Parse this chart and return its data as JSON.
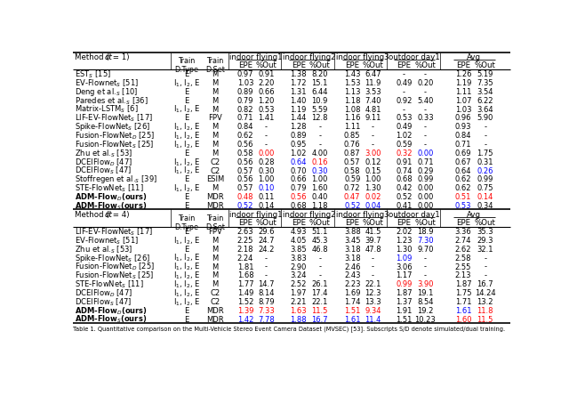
{
  "section1_rows": [
    [
      "EST$_S$ [15]",
      "E",
      "M",
      "0.97",
      "0.91",
      "1.38",
      "8.20",
      "1.43",
      "6.47",
      "-",
      "-",
      "1.26",
      "5.19"
    ],
    [
      "EV-Flownet$_S$ [51]",
      "I$_1$, I$_2$, E",
      "M",
      "1.03",
      "2.20",
      "1.72",
      "15.1",
      "1.53",
      "11.9",
      "0.49",
      "0.20",
      "1.19",
      "7.35"
    ],
    [
      "Deng et al.$_S$ [10]",
      "E",
      "M",
      "0.89",
      "0.66",
      "1.31",
      "6.44",
      "1.13",
      "3.53",
      "-",
      "-",
      "1.11",
      "3.54"
    ],
    [
      "Paredes et al.$_S$ [36]",
      "E",
      "M",
      "0.79",
      "1.20",
      "1.40",
      "10.9",
      "1.18",
      "7.40",
      "0.92",
      "5.40",
      "1.07",
      "6.22"
    ],
    [
      "Matrix-LSTM$_S$ [6]",
      "I$_1$, I$_2$, E",
      "M",
      "0.82",
      "0.53",
      "1.19",
      "5.59",
      "1.08",
      "4.81",
      "-",
      "-",
      "1.03",
      "3.64"
    ],
    [
      "LIF-EV-FlowNet$_S$ [17]",
      "E",
      "FPV",
      "0.71",
      "1.41",
      "1.44",
      "12.8",
      "1.16",
      "9.11",
      "0.53",
      "0.33",
      "0.96",
      "5.90"
    ],
    [
      "Spike-FlowNet$_S$ [26]",
      "I$_1$, I$_2$, E",
      "M",
      "0.84",
      "-",
      "1.28",
      "-",
      "1.11",
      "-",
      "0.49",
      "-",
      "0.93",
      "-"
    ],
    [
      "Fusion-FlowNet$_D$ [25]",
      "I$_1$, I$_2$, E",
      "M",
      "0.62",
      "-",
      "0.89",
      "-",
      "0.85",
      "-",
      "1.02",
      "-",
      "0.84",
      "-"
    ],
    [
      "Fusion-FlowNet$_S$ [25]",
      "I$_1$, I$_2$, E",
      "M",
      "0.56",
      "-",
      "0.95",
      "-",
      "0.76",
      "-",
      "0.59",
      "-",
      "0.71",
      "-"
    ],
    [
      "Zhu et al.$_S$ [53]",
      "E",
      "M",
      "0.58",
      "0.00",
      "1.02",
      "4.00",
      "0.87",
      "3.00",
      "0.32",
      "0.00",
      "0.69",
      "1.75"
    ],
    [
      "DCEIFlow$_D$ [47]",
      "I$_1$, I$_2$, E",
      "C2",
      "0.56",
      "0.28",
      "0.64",
      "0.16",
      "0.57",
      "0.12",
      "0.91",
      "0.71",
      "0.67",
      "0.31"
    ],
    [
      "DCEIFlow$_S$ [47]",
      "I$_1$, I$_2$, E",
      "C2",
      "0.57",
      "0.30",
      "0.70",
      "0.30",
      "0.58",
      "0.15",
      "0.74",
      "0.29",
      "0.64",
      "0.26"
    ],
    [
      "Stoffregen et al.$_S$ [39]",
      "E",
      "ESIM",
      "0.56",
      "1.00",
      "0.66",
      "1.00",
      "0.59",
      "1.00",
      "0.68",
      "0.99",
      "0.62",
      "0.99"
    ],
    [
      "STE-FlowNet$_S$ [11]",
      "I$_1$, I$_2$, E",
      "M",
      "0.57",
      "0.10",
      "0.79",
      "1.60",
      "0.72",
      "1.30",
      "0.42",
      "0.00",
      "0.62",
      "0.75"
    ],
    [
      "ADM-Flow$_D$(ours)",
      "E",
      "MDR",
      "0.48",
      "0.11",
      "0.56",
      "0.40",
      "0.47",
      "0.02",
      "0.52",
      "0.00",
      "0.51",
      "0.14"
    ],
    [
      "ADM-Flow$_S$(ours)",
      "E",
      "MDR",
      "0.52",
      "0.14",
      "0.68",
      "1.18",
      "0.52",
      "0.04",
      "0.41",
      "0.00",
      "0.53",
      "0.34"
    ]
  ],
  "section1_cell_colors": [
    [
      9,
      4,
      "red"
    ],
    [
      9,
      8,
      "red"
    ],
    [
      9,
      9,
      "red"
    ],
    [
      9,
      10,
      "blue"
    ],
    [
      10,
      5,
      "blue"
    ],
    [
      10,
      6,
      "red"
    ],
    [
      11,
      6,
      "blue"
    ],
    [
      11,
      12,
      "blue"
    ],
    [
      13,
      4,
      "blue"
    ],
    [
      14,
      3,
      "red"
    ],
    [
      14,
      5,
      "red"
    ],
    [
      14,
      7,
      "red"
    ],
    [
      14,
      8,
      "red"
    ],
    [
      14,
      11,
      "red"
    ],
    [
      14,
      12,
      "red"
    ],
    [
      15,
      3,
      "blue"
    ],
    [
      15,
      7,
      "blue"
    ],
    [
      15,
      8,
      "blue"
    ],
    [
      15,
      11,
      "blue"
    ]
  ],
  "section2_rows": [
    [
      "LIF-EV-FlowNet$_S$ [17]",
      "E",
      "FPV",
      "2.63",
      "29.6",
      "4.93",
      "51.1",
      "3.88",
      "41.5",
      "2.02",
      "18.9",
      "3.36",
      "35.3"
    ],
    [
      "EV-Flownet$_S$ [51]",
      "I$_1$, I$_2$, E",
      "M",
      "2.25",
      "24.7",
      "4.05",
      "45.3",
      "3.45",
      "39.7",
      "1.23",
      "7.30",
      "2.74",
      "29.3"
    ],
    [
      "Zhu et al.$_S$ [53]",
      "E",
      "M",
      "2.18",
      "24.2",
      "3.85",
      "46.8",
      "3.18",
      "47.8",
      "1.30",
      "9.70",
      "2.62",
      "32.1"
    ],
    [
      "Spike-FlowNet$_S$ [26]",
      "I$_1$, I$_2$, E",
      "M",
      "2.24",
      "-",
      "3.83",
      "-",
      "3.18",
      "-",
      "1.09",
      "-",
      "2.58",
      "-"
    ],
    [
      "Fusion-FlowNet$_D$ [25]",
      "I$_1$, I$_2$, E",
      "M",
      "1.81",
      "-",
      "2.90",
      "-",
      "2.46",
      "-",
      "3.06",
      "-",
      "2.55",
      "-"
    ],
    [
      "Fusion-FlowNet$_S$ [25]",
      "I$_1$, I$_2$, E",
      "M",
      "1.68",
      "-",
      "3.24",
      "-",
      "2.43",
      "-",
      "1.17",
      "-",
      "2.13",
      "-"
    ],
    [
      "STE-FlowNet$_S$ [11]",
      "I$_1$, I$_2$, E",
      "M",
      "1.77",
      "14.7",
      "2.52",
      "26.1",
      "2.23",
      "22.1",
      "0.99",
      "3.90",
      "1.87",
      "16.7"
    ],
    [
      "DCEIFlow$_D$ [47]",
      "I$_1$, I$_2$, E",
      "C2",
      "1.49",
      "8.14",
      "1.97",
      "17.4",
      "1.69",
      "12.3",
      "1.87",
      "19.1",
      "1.75",
      "14.24"
    ],
    [
      "DCEIFlow$_S$ [47]",
      "I$_1$, I$_2$, E",
      "C2",
      "1.52",
      "8.79",
      "2.21",
      "22.1",
      "1.74",
      "13.3",
      "1.37",
      "8.54",
      "1.71",
      "13.2"
    ],
    [
      "ADM-Flow$_D$(ours)",
      "E",
      "MDR",
      "1.39",
      "7.33",
      "1.63",
      "11.5",
      "1.51",
      "9.34",
      "1.91",
      "19.2",
      "1.61",
      "11.8"
    ],
    [
      "ADM-Flow$_S$(ours)",
      "E",
      "MDR",
      "1.42",
      "7.78",
      "1.88",
      "16.7",
      "1.61",
      "11.4",
      "1.51",
      "10.23",
      "1.60",
      "11.5"
    ]
  ],
  "section2_cell_colors": [
    [
      1,
      10,
      "blue"
    ],
    [
      3,
      9,
      "blue"
    ],
    [
      6,
      9,
      "red"
    ],
    [
      6,
      10,
      "red"
    ],
    [
      9,
      3,
      "red"
    ],
    [
      9,
      4,
      "red"
    ],
    [
      9,
      5,
      "red"
    ],
    [
      9,
      6,
      "red"
    ],
    [
      9,
      7,
      "red"
    ],
    [
      9,
      8,
      "red"
    ],
    [
      9,
      11,
      "blue"
    ],
    [
      9,
      12,
      "red"
    ],
    [
      10,
      3,
      "blue"
    ],
    [
      10,
      4,
      "blue"
    ],
    [
      10,
      5,
      "blue"
    ],
    [
      10,
      6,
      "blue"
    ],
    [
      10,
      7,
      "blue"
    ],
    [
      10,
      8,
      "blue"
    ],
    [
      10,
      11,
      "red"
    ],
    [
      10,
      12,
      "red"
    ]
  ],
  "footnote": "Table 1. Quantitative comparison on the Multi-Vehicle Stereo Event Camera Dataset (MVSEC) [53]. Subscripts S/D denote simulated/dual training."
}
